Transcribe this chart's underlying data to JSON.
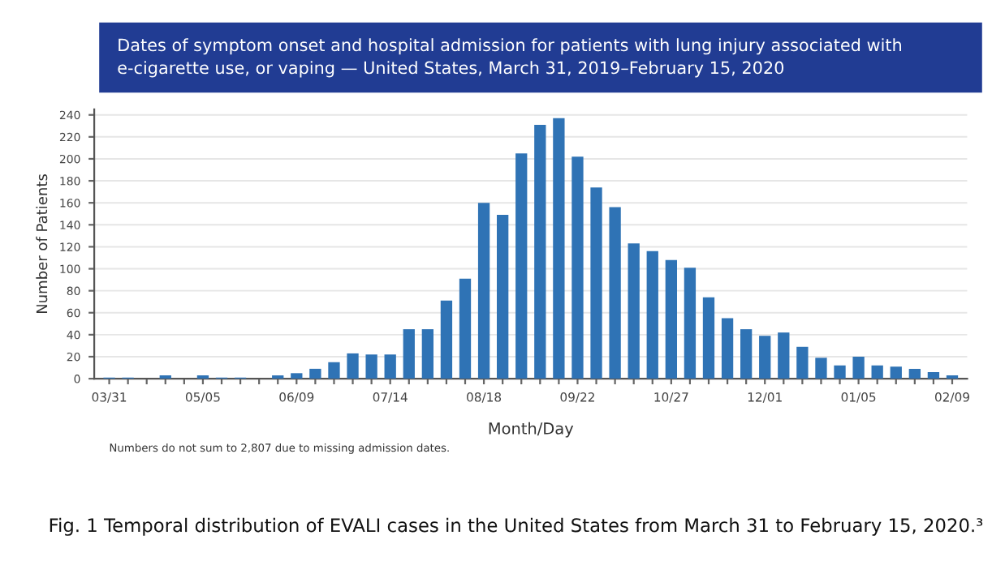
{
  "chart_data": {
    "type": "bar",
    "title": "Dates of symptom onset and hospital admission for patients with lung injury associated with e-cigarette use, or vaping — United States, March 31, 2019–February 15, 2020",
    "xlabel": "Month/Day",
    "ylabel": "Number of Patients",
    "categories": [
      "03/31",
      null,
      null,
      null,
      null,
      "05/05",
      null,
      null,
      null,
      null,
      "06/09",
      null,
      null,
      null,
      null,
      "07/14",
      null,
      null,
      null,
      null,
      "08/18",
      null,
      null,
      null,
      null,
      "09/22",
      null,
      null,
      null,
      null,
      "10/27",
      null,
      null,
      null,
      null,
      "12/01",
      null,
      null,
      null,
      null,
      "01/05",
      null,
      null,
      null,
      null,
      "02/09"
    ],
    "values": [
      1,
      1,
      0,
      3,
      0,
      3,
      1,
      1,
      0,
      3,
      5,
      9,
      15,
      23,
      22,
      22,
      45,
      45,
      71,
      91,
      160,
      149,
      205,
      231,
      237,
      202,
      174,
      156,
      123,
      116,
      108,
      101,
      74,
      55,
      45,
      39,
      42,
      29,
      19,
      12,
      20,
      12,
      11,
      9,
      6,
      3
    ],
    "color": "#2f73b5",
    "ylim": [
      0,
      245
    ],
    "yticks": [
      0,
      20,
      40,
      60,
      80,
      100,
      120,
      140,
      160,
      180,
      200,
      220,
      240
    ],
    "grid": "y",
    "legend": false,
    "annotations": [
      "Numbers do not sum to 2,807 due to missing admission dates.",
      "Fig. 1 Temporal distribution of EVALI cases in the United States from March 31 to February 15, 2020.³"
    ]
  }
}
